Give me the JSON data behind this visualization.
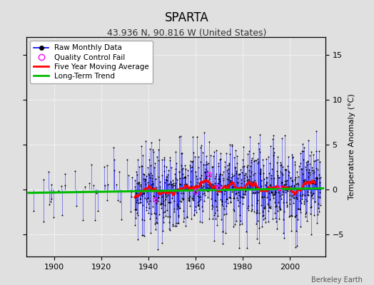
{
  "title": "SPARTA",
  "subtitle": "43.936 N, 90.816 W (United States)",
  "ylabel_right": "Temperature Anomaly (°C)",
  "attribution": "Berkeley Earth",
  "ylim": [
    -7.5,
    17
  ],
  "xlim": [
    1888,
    2015
  ],
  "yticks_left": [
    -5,
    0,
    5,
    10,
    15
  ],
  "yticks_right": [
    -5,
    0,
    5,
    10,
    15
  ],
  "xticks": [
    1900,
    1920,
    1940,
    1960,
    1980,
    2000
  ],
  "line_color": "#0000ff",
  "dot_color": "#000000",
  "ma_color": "#ff0000",
  "trend_color": "#00bb00",
  "qc_color": "#ff00ff",
  "bg_color": "#e0e0e0",
  "plot_bg": "#e0e0e0",
  "seed": 42,
  "start_year": 1890,
  "end_year": 2013,
  "trend_slope": 0.004,
  "trend_intercept": -0.15,
  "ma_window": 60,
  "noise_scale": 2.8,
  "legend_loc": "upper left",
  "title_fontsize": 12,
  "subtitle_fontsize": 9,
  "tick_fontsize": 8,
  "ylabel_fontsize": 8,
  "legend_fontsize": 7.5
}
